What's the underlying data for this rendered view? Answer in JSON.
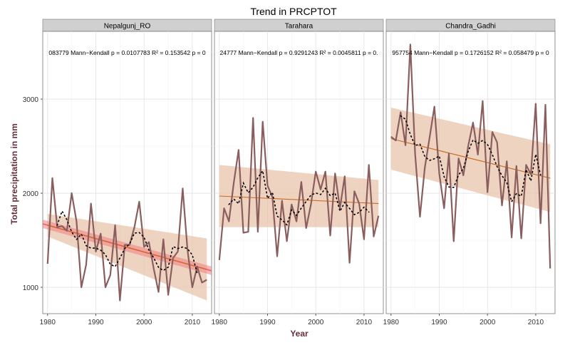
{
  "chart_data": {
    "type": "line",
    "title": "Trend in PRCPTOT",
    "xlabel": "Year",
    "ylabel": "Total precipitation in mm",
    "xlim": [
      1979,
      2014
    ],
    "ylim": [
      720,
      3720
    ],
    "x_ticks": [
      1980,
      1990,
      2000,
      2010
    ],
    "y_ticks": [
      1000,
      2000,
      3000
    ],
    "grid": true,
    "colors": {
      "line": "#8b5e5e",
      "trend": "#c86a1e",
      "ribbon": "#e8c4ac",
      "ribbon_alt": "#f08080",
      "trend_alt": "#f06262",
      "strip": "#d0d0d0",
      "label": "#6b2d3c",
      "moving_avg": "#000000"
    },
    "facets": [
      {
        "name": "Nepalgunj_RO",
        "stat_text": "083779 Mann−Kendall p = 0.0107783 R² = 0.153542 p = 0",
        "x": [
          1980,
          1981,
          1982,
          1983,
          1984,
          1985,
          1986,
          1987,
          1988,
          1989,
          1990,
          1991,
          1992,
          1993,
          1994,
          1995,
          1996,
          1997,
          1998,
          1999,
          2000,
          2001,
          2002,
          2003,
          2004,
          2005,
          2006,
          2007,
          2008,
          2009,
          2010,
          2011,
          2012,
          2013
        ],
        "y": [
          1250,
          2160,
          1640,
          1650,
          1600,
          2000,
          1700,
          1000,
          1240,
          1890,
          1380,
          1570,
          1000,
          1130,
          1660,
          860,
          1450,
          1450,
          1640,
          1910,
          1430,
          1480,
          1200,
          950,
          1510,
          920,
          1310,
          1380,
          2050,
          1400,
          1000,
          1220,
          1050,
          1080
        ],
        "trend": [
          1660,
          1190
        ],
        "ci_half": [
          120,
          330
        ],
        "alt_band": true
      },
      {
        "name": "Tarahara",
        "stat_text": "24777 Mann−Kendall p = 0.9291243 R² = 0.0045811 p = 0.",
        "x": [
          1980,
          1981,
          1982,
          1983,
          1984,
          1985,
          1986,
          1987,
          1988,
          1989,
          1990,
          1991,
          1992,
          1993,
          1994,
          1995,
          1996,
          1997,
          1998,
          1999,
          2000,
          2001,
          2002,
          2003,
          2004,
          2005,
          2006,
          2007,
          2008,
          2009,
          2010,
          2011,
          2012,
          2013
        ],
        "y": [
          1290,
          1840,
          1700,
          2110,
          2460,
          1580,
          1590,
          2800,
          1590,
          2760,
          2080,
          1960,
          1330,
          1920,
          1490,
          1880,
          1700,
          2120,
          1630,
          1880,
          2230,
          2040,
          2230,
          1550,
          2210,
          1840,
          2180,
          1260,
          2020,
          1890,
          1510,
          2300,
          1540,
          1760
        ],
        "trend": [
          1970,
          1890
        ],
        "ci_half": [
          330,
          250
        ],
        "alt_band": false
      },
      {
        "name": "Chandra_Gadhi",
        "stat_text": "957754 Mann−Kendall p = 0.1726152 R² = 0.058479 p = 0",
        "x": [
          1980,
          1981,
          1982,
          1983,
          1984,
          1985,
          1986,
          1987,
          1988,
          1989,
          1990,
          1991,
          1992,
          1993,
          1994,
          1995,
          1996,
          1997,
          1998,
          1999,
          2000,
          2001,
          2002,
          2003,
          2004,
          2005,
          2006,
          2007,
          2008,
          2009,
          2010,
          2011,
          2012,
          2013
        ],
        "y": [
          2600,
          2560,
          2860,
          2510,
          3580,
          2420,
          1750,
          2270,
          2590,
          2920,
          2210,
          1840,
          2420,
          1490,
          2370,
          2190,
          2500,
          2750,
          2410,
          2980,
          2010,
          2650,
          2540,
          1870,
          2340,
          1530,
          2290,
          1520,
          2300,
          2200,
          2950,
          1680,
          2940,
          1200
        ],
        "trend": [
          2580,
          2160
        ],
        "ci_half": [
          330,
          360
        ],
        "alt_band": false
      }
    ]
  }
}
